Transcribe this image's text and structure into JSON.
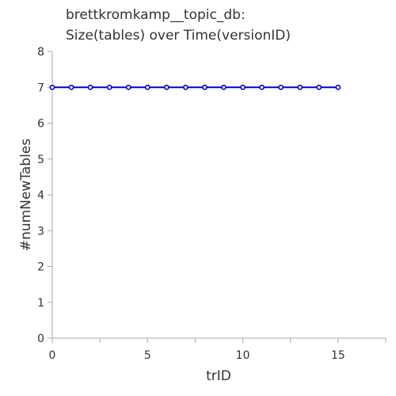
{
  "chart_data": {
    "type": "line",
    "title_lines": [
      "brettkromkamp__topic_db:",
      "Size(tables) over Time(versionID)"
    ],
    "xlabel": "trID",
    "ylabel": "#numNewTables",
    "xlim": [
      0,
      17.5
    ],
    "ylim": [
      0,
      8
    ],
    "x_ticks": [
      0,
      5,
      10,
      15
    ],
    "y_ticks": [
      0,
      1,
      2,
      3,
      4,
      5,
      6,
      7,
      8
    ],
    "grid": false,
    "series": [
      {
        "color": "#0000cc",
        "marker": "circle",
        "x": [
          0,
          1,
          2,
          3,
          4,
          5,
          6,
          7,
          8,
          9,
          10,
          11,
          12,
          13,
          14,
          15
        ],
        "y": [
          7,
          7,
          7,
          7,
          7,
          7,
          7,
          7,
          7,
          7,
          7,
          7,
          7,
          7,
          7,
          7
        ]
      }
    ]
  }
}
